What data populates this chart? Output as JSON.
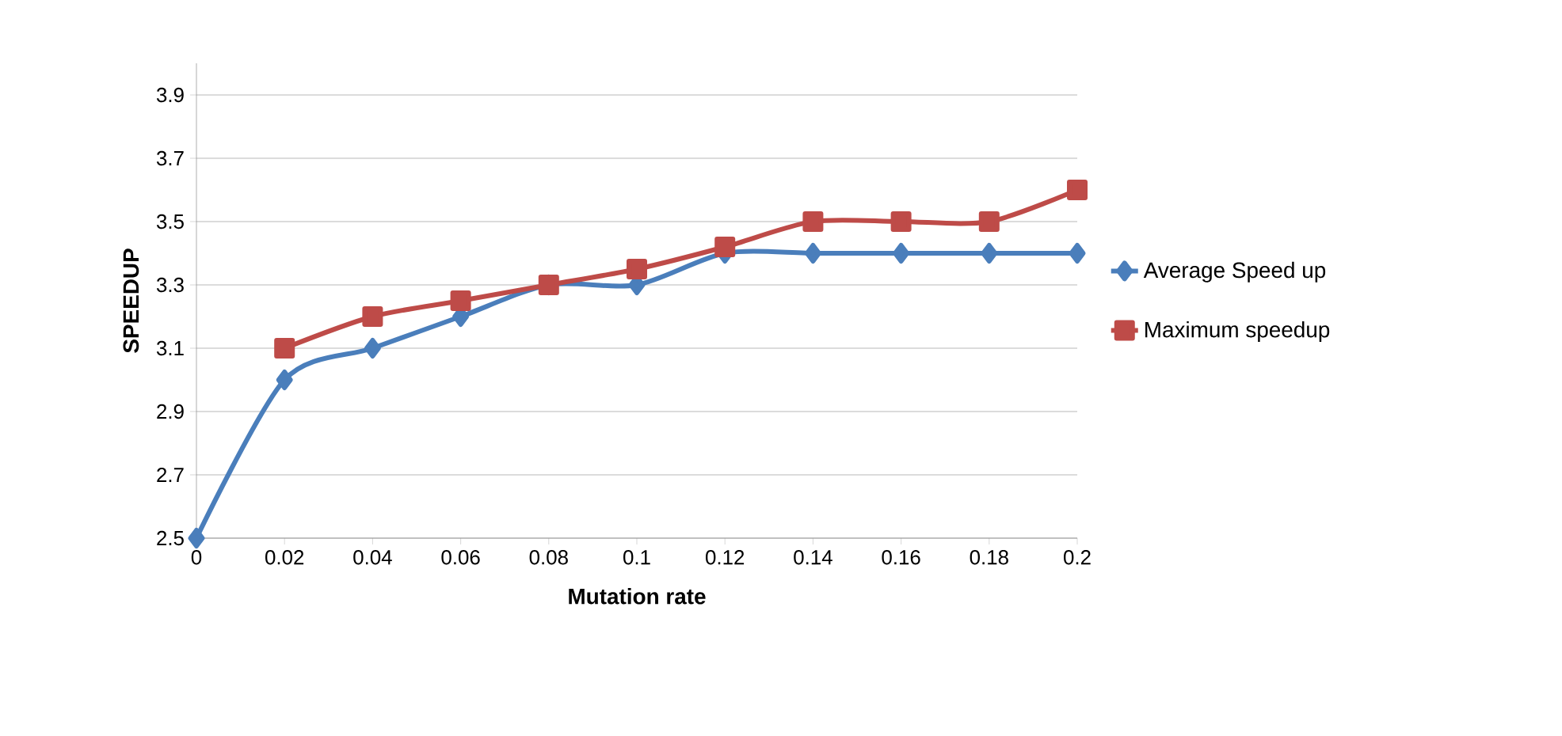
{
  "chart_data": {
    "type": "line",
    "xlabel": "Mutation rate",
    "ylabel": "SPEEDUP",
    "x": [
      0,
      0.02,
      0.04,
      0.06,
      0.08,
      0.1,
      0.12,
      0.14,
      0.16,
      0.18,
      0.2
    ],
    "series": [
      {
        "name": "Average Speed up",
        "color": "#4a7ebb",
        "marker": "diamond",
        "values": [
          2.5,
          3.0,
          3.1,
          3.2,
          3.3,
          3.3,
          3.4,
          3.4,
          3.4,
          3.4,
          3.4
        ]
      },
      {
        "name": "Maximum speedup",
        "color": "#be4b48",
        "marker": "square",
        "values": [
          null,
          3.1,
          3.2,
          3.25,
          3.3,
          3.35,
          3.42,
          3.5,
          3.5,
          3.5,
          3.6
        ]
      }
    ],
    "xlim": [
      0,
      0.2
    ],
    "ylim": [
      2.5,
      4.0
    ],
    "xticks": [
      0,
      0.02,
      0.04,
      0.06,
      0.08,
      0.1,
      0.12,
      0.14,
      0.16,
      0.18,
      0.2
    ],
    "yticks": [
      2.5,
      2.7,
      2.9,
      3.1,
      3.3,
      3.5,
      3.7,
      3.9
    ],
    "grid": "y",
    "legend": "right"
  }
}
